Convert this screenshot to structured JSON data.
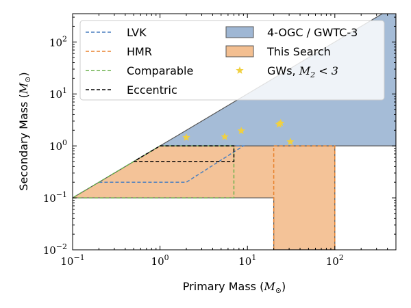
{
  "chart_data": {
    "type": "area",
    "xlabel_text": "Primary Mass (",
    "xlabel_math": "M",
    "xlabel_sub": "⊙",
    "xlabel_end": ")",
    "ylabel_text": "Secondary Mass (",
    "ylabel_math": "M",
    "ylabel_sub": "⊙",
    "ylabel_end": ")",
    "xscale": "log",
    "yscale": "log",
    "xlim": [
      0.1,
      500
    ],
    "ylim": [
      0.01,
      350
    ],
    "xticks": [
      {
        "value": 0.1,
        "base": "10",
        "exp": "−1"
      },
      {
        "value": 1,
        "base": "10",
        "exp": "0"
      },
      {
        "value": 10,
        "base": "10",
        "exp": "1"
      },
      {
        "value": 100,
        "base": "10",
        "exp": "2"
      }
    ],
    "yticks": [
      {
        "value": 0.01,
        "base": "10",
        "exp": "−2"
      },
      {
        "value": 0.1,
        "base": "10",
        "exp": "−1"
      },
      {
        "value": 1,
        "base": "10",
        "exp": "0"
      },
      {
        "value": 10,
        "base": "10",
        "exp": "1"
      },
      {
        "value": 100,
        "base": "10",
        "exp": "2"
      }
    ],
    "regions": [
      {
        "name": "4-OGC / GWTC-3",
        "color": "#7f9fc6",
        "polygon": [
          [
            1,
            1
          ],
          [
            500,
            500
          ],
          [
            500,
            1
          ]
        ]
      },
      {
        "name": "This Search",
        "color": "#efa96c",
        "polygon": [
          [
            0.1,
            0.1
          ],
          [
            1,
            1
          ],
          [
            100,
            1
          ],
          [
            100,
            0.01
          ],
          [
            20,
            0.01
          ],
          [
            20,
            0.1
          ]
        ]
      }
    ],
    "series": [
      {
        "name": "LVK",
        "color": "#4a7fbf",
        "points": [
          [
            0.2,
            0.2
          ],
          [
            2,
            0.2
          ],
          [
            9,
            1
          ],
          [
            1,
            1
          ]
        ]
      },
      {
        "name": "HMR",
        "color": "#e8822e",
        "points": [
          [
            20,
            0.01
          ],
          [
            20,
            1
          ],
          [
            100,
            1
          ],
          [
            100,
            0.01
          ]
        ]
      },
      {
        "name": "Comparable",
        "color": "#6ab04c",
        "points": [
          [
            0.1,
            0.1
          ],
          [
            7,
            0.1
          ],
          [
            7,
            1
          ],
          [
            1,
            1
          ],
          [
            0.1,
            0.1
          ]
        ]
      },
      {
        "name": "Eccentric",
        "color": "#000000",
        "points": [
          [
            0.5,
            0.5
          ],
          [
            7,
            0.5
          ],
          [
            7,
            1
          ],
          [
            1,
            1
          ],
          [
            0.5,
            0.5
          ]
        ]
      }
    ],
    "gw_events": {
      "name_text": "GWs, ",
      "name_math": "M",
      "name_sub": "2",
      "name_end": " < 3",
      "color": "#f0d040",
      "points": [
        [
          2,
          1.45
        ],
        [
          5.5,
          1.5
        ],
        [
          8.5,
          1.95
        ],
        [
          23,
          2.6
        ],
        [
          24,
          2.75
        ],
        [
          31,
          1.2
        ]
      ]
    },
    "legend": {
      "placement": "top",
      "columns": 2,
      "entries": [
        "LVK",
        "HMR",
        "Comparable",
        "Eccentric",
        "4-OGC / GWTC-3",
        "This Search"
      ]
    }
  }
}
